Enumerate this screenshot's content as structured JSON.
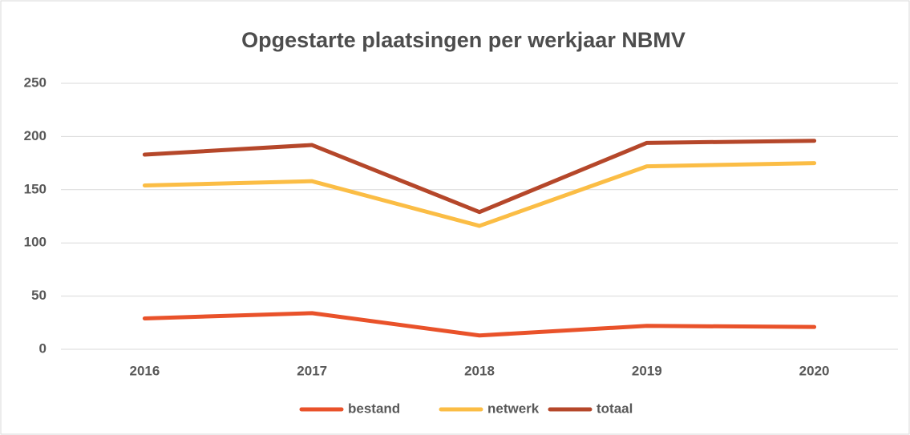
{
  "chart_data": {
    "type": "line",
    "title": "Opgestarte plaatsingen per werkjaar NBMV",
    "categories": [
      "2016",
      "2017",
      "2018",
      "2019",
      "2020"
    ],
    "series": [
      {
        "name": "bestand",
        "color": "#e9522a",
        "values": [
          29,
          34,
          13,
          22,
          21
        ]
      },
      {
        "name": "netwerk",
        "color": "#fbbd45",
        "values": [
          154,
          158,
          116,
          172,
          175
        ]
      },
      {
        "name": "totaal",
        "color": "#b5472a",
        "values": [
          183,
          192,
          129,
          194,
          196
        ]
      }
    ],
    "ylim": [
      0,
      250
    ],
    "yticks": [
      0,
      50,
      100,
      150,
      200,
      250
    ],
    "grid": true,
    "legend": "bottom"
  }
}
